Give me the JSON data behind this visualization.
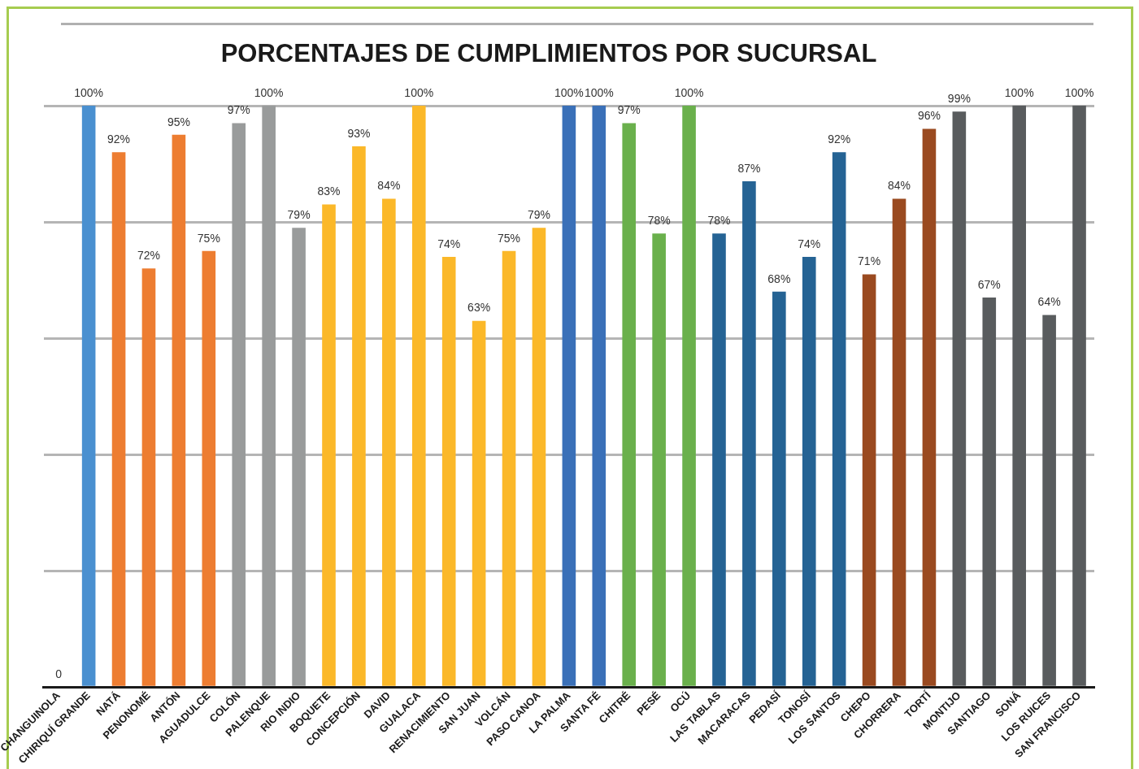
{
  "chart_data": {
    "type": "bar",
    "title": "PORCENTAJES DE CUMPLIMIENTOS POR SUCURSAL",
    "categories": [
      "CHANGUINOLA",
      "CHIRIQUÍ GRANDE",
      "NATÁ",
      "PENONOMÉ",
      "ANTÓN",
      "AGUADULCE",
      "COLÓN",
      "PALENQUE",
      "RIO INDIO",
      "BOQUETE",
      "CONCEPCIÓN",
      "DAVID",
      "GUALACA",
      "RENACIMIENTO",
      "SAN JUAN",
      "VOLCÁN",
      "PASO CANOA",
      "LA PALMA",
      "SANTA FÉ",
      "CHITRÉ",
      "PESÉ",
      "OCÚ",
      "LAS TABLAS",
      "MACARACAS",
      "PEDASÍ",
      "TONOSÍ",
      "LOS SANTOS",
      "CHEPO",
      "CHORRERA",
      "TORTÍ",
      "MONTIJO",
      "SANTIAGO",
      "SONÁ",
      "LOS RUICES",
      "SAN FRANCISCO"
    ],
    "values": [
      0,
      100,
      92,
      72,
      95,
      75,
      97,
      100,
      79,
      83,
      93,
      84,
      100,
      74,
      63,
      75,
      79,
      100,
      100,
      97,
      78,
      100,
      78,
      87,
      68,
      74,
      92,
      71,
      84,
      96,
      99,
      67,
      100,
      64,
      100
    ],
    "value_labels": [
      "0",
      "100%",
      "92%",
      "72%",
      "95%",
      "75%",
      "97%",
      "100%",
      "79%",
      "83%",
      "93%",
      "84%",
      "100%",
      "74%",
      "63%",
      "75%",
      "79%",
      "100%",
      "100%",
      "97%",
      "78%",
      "100%",
      "78%",
      "87%",
      "68%",
      "74%",
      "92%",
      "71%",
      "84%",
      "96%",
      "99%",
      "67%",
      "100%",
      "64%",
      "100%"
    ],
    "colors": [
      "#4a90d0",
      "#4a90d0",
      "#ed7d31",
      "#ed7d31",
      "#ed7d31",
      "#ed7d31",
      "#999b9b",
      "#999b9b",
      "#999b9b",
      "#fbb829",
      "#fbb829",
      "#fbb829",
      "#fbb829",
      "#fbb829",
      "#fbb829",
      "#fbb829",
      "#fbb829",
      "#3a70b8",
      "#3a70b8",
      "#6ab04c",
      "#6ab04c",
      "#6ab04c",
      "#256394",
      "#256394",
      "#256394",
      "#256394",
      "#256394",
      "#9a4a20",
      "#9a4a20",
      "#9a4a20",
      "#595c5e",
      "#595c5e",
      "#595c5e",
      "#595c5e",
      "#595c5e"
    ],
    "ylim": [
      0,
      100
    ],
    "yticks": [
      {
        "value": 0,
        "label": null
      },
      {
        "value": 20,
        "label": null
      },
      {
        "value": 40,
        "label": null
      },
      {
        "value": 60,
        "label": null
      },
      {
        "value": 80,
        "label": null
      },
      {
        "value": 100,
        "label": null
      }
    ],
    "grid": "y",
    "tick_labels": "x",
    "legend": false
  }
}
